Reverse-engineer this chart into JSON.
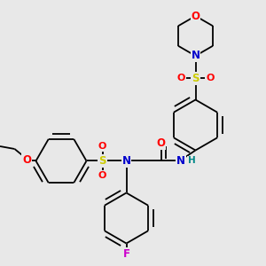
{
  "bg_color": "#e8e8e8",
  "bond_color": "#000000",
  "atom_colors": {
    "O": "#ff0000",
    "N": "#0000cc",
    "S": "#cccc00",
    "F": "#cc00cc",
    "H": "#008888",
    "C": "#000000"
  },
  "bond_lw": 1.3,
  "font_size": 8.5,
  "xlim": [
    0.0,
    1.0
  ],
  "ylim": [
    0.0,
    1.0
  ]
}
